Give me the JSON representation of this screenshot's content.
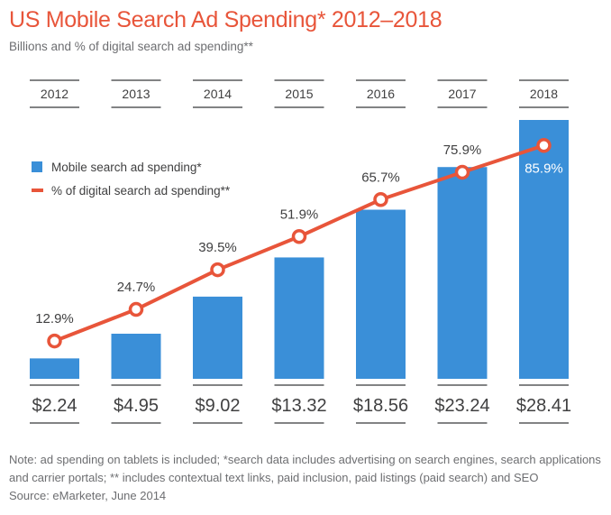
{
  "chart_data": {
    "type": "bar",
    "title": "US Mobile Search Ad Spending* 2012–2018",
    "subtitle": "Billions and % of digital search ad spending**",
    "categories": [
      "2012",
      "2013",
      "2014",
      "2015",
      "2016",
      "2017",
      "2018"
    ],
    "series": [
      {
        "name": "Mobile search ad spending*",
        "type": "bar",
        "values": [
          2.24,
          4.95,
          9.02,
          13.32,
          18.56,
          23.24,
          28.41
        ],
        "labels": [
          "$2.24",
          "$4.95",
          "$9.02",
          "$13.32",
          "$18.56",
          "$23.24",
          "$28.41"
        ],
        "color": "#3a8fd8"
      },
      {
        "name": "% of digital search ad spending**",
        "type": "line",
        "values": [
          12.9,
          24.7,
          39.5,
          51.9,
          65.7,
          75.9,
          85.9
        ],
        "labels": [
          "12.9%",
          "24.7%",
          "39.5%",
          "51.9%",
          "65.7%",
          "75.9%",
          "85.9%"
        ],
        "color": "#e8553a"
      }
    ],
    "legend": "left",
    "grid": false
  },
  "note_line1": "Note: ad spending on tablets is included; *search data includes advertising on search engines, search applications and carrier portals; ** includes contextual text links, paid inclusion, paid listings (paid search) and SEO",
  "note_line2": "Source: eMarketer, June 2014",
  "colors": {
    "title": "#e8553a",
    "bar": "#3a8fd8",
    "line": "#e8553a",
    "text": "#6d6e71",
    "rule": "#595a5c"
  }
}
